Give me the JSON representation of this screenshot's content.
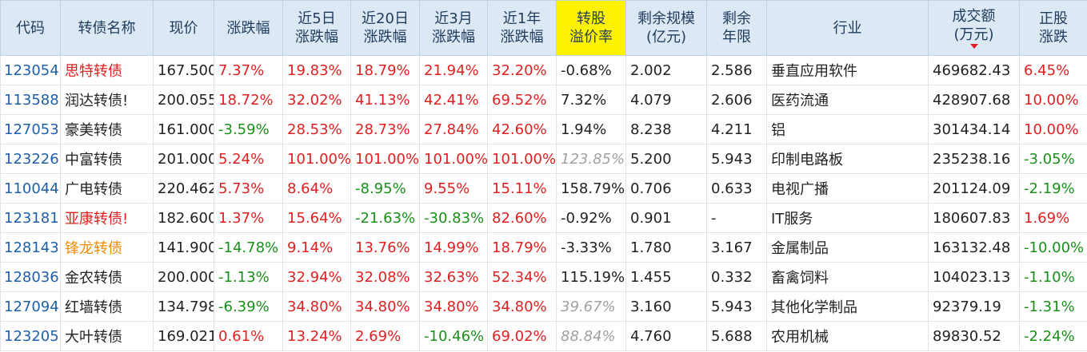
{
  "headers": [
    {
      "label": "代码",
      "highlight": false
    },
    {
      "label": "转债名称",
      "highlight": false
    },
    {
      "label": "现价",
      "highlight": false
    },
    {
      "label": "涨跌幅",
      "highlight": false
    },
    {
      "label": "近5日\n涨跌幅",
      "highlight": false
    },
    {
      "label": "近20日\n涨跌幅",
      "highlight": false
    },
    {
      "label": "近3月\n涨跌幅",
      "highlight": false
    },
    {
      "label": "近1年\n涨跌幅",
      "highlight": false
    },
    {
      "label": "转股\n溢价率",
      "highlight": true
    },
    {
      "label": "剩余规模\n(亿元)",
      "highlight": false
    },
    {
      "label": "剩余\n年限",
      "highlight": false
    },
    {
      "label": "行业",
      "highlight": false
    },
    {
      "label": "成交额\n(万元)",
      "highlight": false,
      "sorted": "desc"
    },
    {
      "label": "正股\n涨跌",
      "highlight": false
    }
  ],
  "colors": {
    "up": "#e02020",
    "down": "#1a8f1a",
    "code": "#1f5fa8",
    "warn_name": "#f08c00",
    "header_bg": "#dce9f5",
    "highlight_bg": "#fff300"
  },
  "rows": [
    {
      "code": "123054",
      "name": "思特转债",
      "name_style": "up",
      "price": "167.500",
      "chg": "7.37%",
      "chg_s": "up",
      "d5": "19.83%",
      "d5_s": "up",
      "d20": "18.79%",
      "d20_s": "up",
      "m3": "21.94%",
      "m3_s": "up",
      "y1": "32.20%",
      "y1_s": "up",
      "premium": "-0.68%",
      "premium_s": "",
      "scale": "2.002",
      "years": "2.586",
      "industry": "垂直应用软件",
      "turnover": "469682.43",
      "stock_chg": "6.45%",
      "stock_chg_s": "up"
    },
    {
      "code": "113588",
      "name": "润达转债!",
      "name_style": "",
      "price": "200.055",
      "chg": "18.72%",
      "chg_s": "up",
      "d5": "32.02%",
      "d5_s": "up",
      "d20": "41.13%",
      "d20_s": "up",
      "m3": "42.41%",
      "m3_s": "up",
      "y1": "69.52%",
      "y1_s": "up",
      "premium": "7.32%",
      "premium_s": "",
      "scale": "4.079",
      "years": "2.606",
      "industry": "医药流通",
      "turnover": "428907.68",
      "stock_chg": "10.00%",
      "stock_chg_s": "up"
    },
    {
      "code": "127053",
      "name": "豪美转债",
      "name_style": "",
      "price": "161.000",
      "chg": "-3.59%",
      "chg_s": "down",
      "d5": "28.53%",
      "d5_s": "up",
      "d20": "28.73%",
      "d20_s": "up",
      "m3": "27.84%",
      "m3_s": "up",
      "y1": "42.60%",
      "y1_s": "up",
      "premium": "1.94%",
      "premium_s": "",
      "scale": "8.238",
      "years": "4.211",
      "industry": "铝",
      "turnover": "301434.14",
      "stock_chg": "10.00%",
      "stock_chg_s": "up"
    },
    {
      "code": "123226",
      "name": "中富转债",
      "name_style": "",
      "price": "201.000",
      "chg": "5.24%",
      "chg_s": "up",
      "d5": "101.00%",
      "d5_s": "up",
      "d20": "101.00%",
      "d20_s": "up",
      "m3": "101.00%",
      "m3_s": "up",
      "y1": "101.00%",
      "y1_s": "up",
      "premium": "123.85%",
      "premium_s": "dim",
      "scale": "5.200",
      "years": "5.943",
      "industry": "印制电路板",
      "turnover": "235238.16",
      "stock_chg": "-3.05%",
      "stock_chg_s": "down"
    },
    {
      "code": "110044",
      "name": "广电转债",
      "name_style": "",
      "price": "220.462",
      "chg": "5.73%",
      "chg_s": "up",
      "d5": "8.64%",
      "d5_s": "up",
      "d20": "-8.95%",
      "d20_s": "down",
      "m3": "9.55%",
      "m3_s": "up",
      "y1": "15.11%",
      "y1_s": "up",
      "premium": "158.79%",
      "premium_s": "",
      "scale": "0.706",
      "years": "0.633",
      "industry": "电视广播",
      "turnover": "201124.09",
      "stock_chg": "-2.19%",
      "stock_chg_s": "down"
    },
    {
      "code": "123181",
      "name": "亚康转债!",
      "name_style": "up",
      "price": "182.600",
      "chg": "1.37%",
      "chg_s": "up",
      "d5": "15.64%",
      "d5_s": "up",
      "d20": "-21.63%",
      "d20_s": "down",
      "m3": "-30.83%",
      "m3_s": "down",
      "y1": "82.60%",
      "y1_s": "up",
      "premium": "-0.92%",
      "premium_s": "",
      "scale": "0.901",
      "years": "-",
      "industry": "IT服务",
      "turnover": "180607.83",
      "stock_chg": "1.69%",
      "stock_chg_s": "up"
    },
    {
      "code": "128143",
      "name": "锋龙转债",
      "name_style": "orange",
      "price": "141.900",
      "chg": "-14.78%",
      "chg_s": "down",
      "d5": "9.14%",
      "d5_s": "up",
      "d20": "13.76%",
      "d20_s": "up",
      "m3": "14.99%",
      "m3_s": "up",
      "y1": "18.79%",
      "y1_s": "up",
      "premium": "-3.33%",
      "premium_s": "",
      "scale": "1.780",
      "years": "3.167",
      "industry": "金属制品",
      "turnover": "163132.48",
      "stock_chg": "-10.00%",
      "stock_chg_s": "down"
    },
    {
      "code": "128036",
      "name": "金农转债",
      "name_style": "",
      "price": "200.000",
      "chg": "-1.13%",
      "chg_s": "down",
      "d5": "32.94%",
      "d5_s": "up",
      "d20": "32.08%",
      "d20_s": "up",
      "m3": "32.63%",
      "m3_s": "up",
      "y1": "52.34%",
      "y1_s": "up",
      "premium": "115.19%",
      "premium_s": "",
      "scale": "1.455",
      "years": "0.332",
      "industry": "畜禽饲料",
      "turnover": "104023.13",
      "stock_chg": "-1.10%",
      "stock_chg_s": "down"
    },
    {
      "code": "127094",
      "name": "红墙转债",
      "name_style": "",
      "price": "134.798",
      "chg": "-6.39%",
      "chg_s": "down",
      "d5": "34.80%",
      "d5_s": "up",
      "d20": "34.80%",
      "d20_s": "up",
      "m3": "34.80%",
      "m3_s": "up",
      "y1": "34.80%",
      "y1_s": "up",
      "premium": "39.67%",
      "premium_s": "dim",
      "scale": "3.160",
      "years": "5.943",
      "industry": "其他化学制品",
      "turnover": "92379.19",
      "stock_chg": "-1.31%",
      "stock_chg_s": "down"
    },
    {
      "code": "123205",
      "name": "大叶转债",
      "name_style": "",
      "price": "169.021",
      "chg": "0.61%",
      "chg_s": "up",
      "d5": "13.24%",
      "d5_s": "up",
      "d20": "2.69%",
      "d20_s": "up",
      "m3": "-10.46%",
      "m3_s": "down",
      "y1": "69.02%",
      "y1_s": "up",
      "premium": "88.84%",
      "premium_s": "dim",
      "scale": "4.760",
      "years": "5.688",
      "industry": "农用机械",
      "turnover": "89830.52",
      "stock_chg": "-2.24%",
      "stock_chg_s": "down"
    }
  ]
}
